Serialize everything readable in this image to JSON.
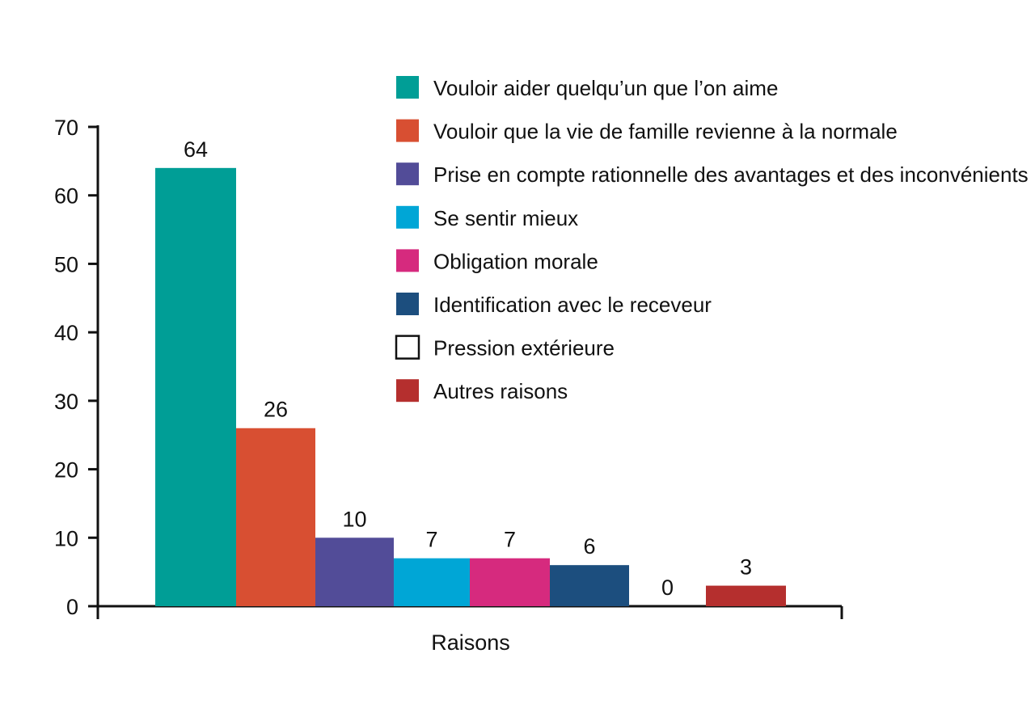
{
  "chart_data": {
    "type": "bar",
    "xlabel": "Raisons",
    "ylabel": "",
    "ylim": [
      0,
      70
    ],
    "yticks": [
      0,
      10,
      20,
      30,
      40,
      50,
      60,
      70
    ],
    "grid": false,
    "legend_position": "top-right",
    "series": [
      {
        "name": "Vouloir aider quelqu’un que l’on aime",
        "value": 64,
        "label": "64",
        "color": "#009E96",
        "outline": false
      },
      {
        "name": "Vouloir que la vie de famille revienne à la normale",
        "value": 26,
        "label": "26",
        "color": "#D84F32",
        "outline": false
      },
      {
        "name": "Prise en compte rationnelle des avantages et des inconvénients",
        "value": 10,
        "label": "10",
        "color": "#524C98",
        "outline": false
      },
      {
        "name": "Se sentir mieux",
        "value": 7,
        "label": "7",
        "color": "#00A6D6",
        "outline": false
      },
      {
        "name": "Obligation morale",
        "value": 7,
        "label": "7",
        "color": "#D62A7E",
        "outline": false
      },
      {
        "name": "Identification avec le receveur",
        "value": 6,
        "label": "6",
        "color": "#1C4E7E",
        "outline": false
      },
      {
        "name": "Pression extérieure",
        "value": 0,
        "label": "0",
        "color": "#FFFFFF",
        "outline": true
      },
      {
        "name": "Autres raisons",
        "value": 3,
        "label": "3",
        "color": "#B52F2E",
        "outline": false
      }
    ]
  }
}
